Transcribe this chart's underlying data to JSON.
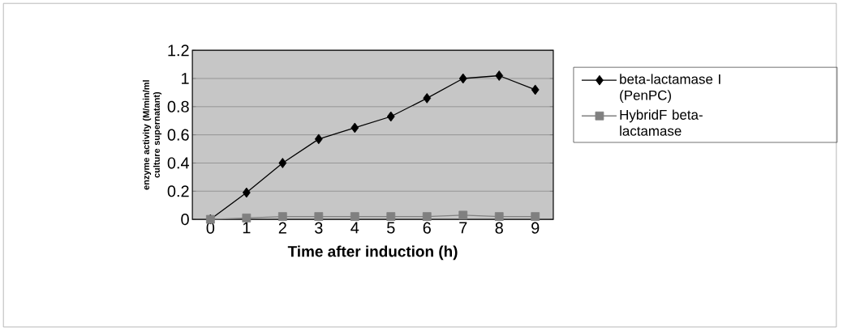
{
  "chart_data": {
    "type": "line",
    "xlabel": "Time after induction (h)",
    "ylabel": "enzyme activity (M/min/ml culture supernatant)",
    "categories": [
      "0",
      "1",
      "2",
      "3",
      "4",
      "5",
      "6",
      "7",
      "8",
      "9"
    ],
    "series": [
      {
        "name": "beta-lactamase I (PenPC)",
        "color": "#000000",
        "marker": "diamond",
        "values": [
          0,
          0.19,
          0.4,
          0.57,
          0.65,
          0.73,
          0.86,
          1.0,
          1.02,
          0.92
        ]
      },
      {
        "name": "HybridF beta-lactamase",
        "color": "#808080",
        "marker": "square",
        "values": [
          0,
          0.01,
          0.02,
          0.02,
          0.02,
          0.02,
          0.02,
          0.03,
          0.02,
          0.02
        ]
      }
    ],
    "ylim": [
      0,
      1.2
    ],
    "yticks": [
      0,
      0.2,
      0.4,
      0.6,
      0.8,
      1,
      1.2
    ],
    "grid": "y",
    "legend": "right",
    "line_style": "solid"
  }
}
